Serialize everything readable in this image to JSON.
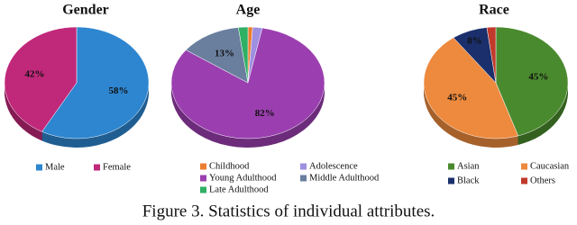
{
  "chart_data": [
    {
      "type": "pie",
      "title": "Gender",
      "categories": [
        "Male",
        "Female"
      ],
      "values": [
        58,
        42
      ],
      "value_labels": [
        "58%",
        "42%"
      ],
      "colors": [
        "#2e86d0",
        "#c0287a"
      ]
    },
    {
      "type": "pie",
      "title": "Age",
      "categories": [
        "Childhood",
        "Adolescence",
        "Young Adulthood",
        "Middle Adulthood",
        "Late Adulthood"
      ],
      "values": [
        1,
        2,
        82,
        13,
        2
      ],
      "value_labels": [
        null,
        null,
        "82%",
        "13%",
        null
      ],
      "colors": [
        "#ed7d31",
        "#9e8fe0",
        "#9b3fb0",
        "#6a7f9e",
        "#2fb064"
      ]
    },
    {
      "type": "pie",
      "title": "Race",
      "categories": [
        "Asian",
        "Caucasian",
        "Black",
        "Others"
      ],
      "values": [
        45,
        45,
        8,
        2
      ],
      "value_labels": [
        "45%",
        "45%",
        "8%",
        null
      ],
      "colors": [
        "#4a8a2e",
        "#ed8a3e",
        "#1a2f6b",
        "#c0392b"
      ]
    }
  ],
  "caption": "Figure 3. Statistics of individual attributes."
}
